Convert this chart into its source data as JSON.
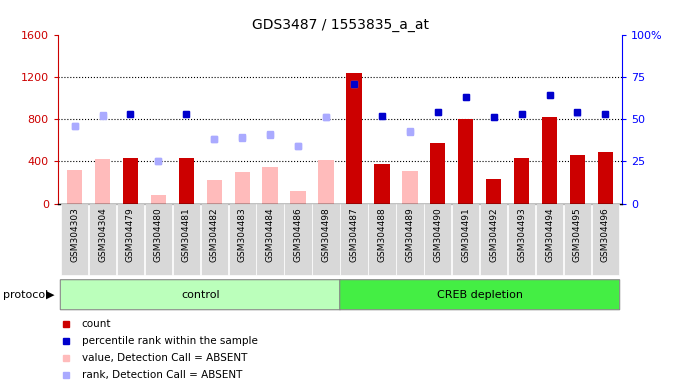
{
  "title": "GDS3487 / 1553835_a_at",
  "samples": [
    "GSM304303",
    "GSM304304",
    "GSM304479",
    "GSM304480",
    "GSM304481",
    "GSM304482",
    "GSM304483",
    "GSM304484",
    "GSM304486",
    "GSM304498",
    "GSM304487",
    "GSM304488",
    "GSM304489",
    "GSM304490",
    "GSM304491",
    "GSM304492",
    "GSM304493",
    "GSM304494",
    "GSM304495",
    "GSM304496"
  ],
  "n_control": 10,
  "n_creb": 10,
  "bar_values": [
    null,
    null,
    430,
    null,
    430,
    null,
    null,
    null,
    null,
    null,
    1240,
    370,
    null,
    570,
    800,
    230,
    430,
    820,
    460,
    490
  ],
  "bar_absent_values": [
    320,
    420,
    null,
    80,
    null,
    220,
    295,
    345,
    120,
    410,
    null,
    null,
    310,
    null,
    null,
    null,
    null,
    null,
    null,
    null
  ],
  "rank_present": [
    null,
    null,
    850,
    null,
    850,
    null,
    null,
    null,
    null,
    null,
    1130,
    830,
    null,
    870,
    1010,
    815,
    845,
    1030,
    860,
    850
  ],
  "rank_absent": [
    730,
    840,
    null,
    400,
    null,
    610,
    630,
    650,
    540,
    820,
    null,
    null,
    680,
    null,
    null,
    null,
    null,
    null,
    null,
    null
  ],
  "blue_present": [
    null,
    null,
    53,
    null,
    53,
    null,
    null,
    null,
    null,
    null,
    71,
    52,
    null,
    54,
    63,
    51,
    53,
    64,
    54,
    53
  ],
  "blue_absent": [
    46,
    52,
    null,
    25,
    null,
    38,
    39,
    41,
    34,
    51,
    null,
    null,
    43,
    null,
    null,
    null,
    null,
    null,
    null,
    null
  ],
  "ylim_left": [
    0,
    1600
  ],
  "ylim_right": [
    0,
    100
  ],
  "yticks_left": [
    0,
    400,
    800,
    1200,
    1600
  ],
  "yticks_right": [
    0,
    25,
    50,
    75,
    100
  ],
  "bar_color": "#cc0000",
  "bar_absent_color": "#ffbbbb",
  "rank_present_color": "#aaaaff",
  "rank_absent_color": "#aaaaff",
  "blue_present_color": "#0000cc",
  "blue_absent_color": "#aaaaff",
  "background_color": "#ffffff",
  "plot_bg": "#ffffff",
  "cell_bg": "#d8d8d8",
  "group_control_color": "#bbffbb",
  "group_creb_color": "#44ee44",
  "left_axis_color": "#cc0000",
  "right_axis_color": "#0000ff",
  "legend_items": [
    {
      "color": "#cc0000",
      "label": "count"
    },
    {
      "color": "#0000cc",
      "label": "percentile rank within the sample"
    },
    {
      "color": "#ffbbbb",
      "label": "value, Detection Call = ABSENT"
    },
    {
      "color": "#aaaaff",
      "label": "rank, Detection Call = ABSENT"
    }
  ]
}
